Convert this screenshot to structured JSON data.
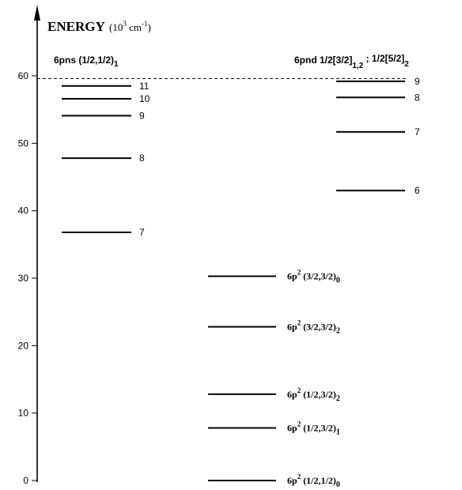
{
  "title": {
    "main": "ENERGY",
    "unit_base": "(10",
    "unit_exp": "3",
    "unit_mid": " cm",
    "unit_exp2": "-1",
    "unit_close": ")"
  },
  "axis": {
    "min": 0,
    "max": 60,
    "ticks": [
      {
        "value": 0,
        "label": "0"
      },
      {
        "value": 10,
        "label": "10"
      },
      {
        "value": 20,
        "label": "20"
      },
      {
        "value": 30,
        "label": "30"
      },
      {
        "value": 40,
        "label": "40"
      },
      {
        "value": 50,
        "label": "50"
      },
      {
        "value": 60,
        "label": "60"
      }
    ]
  },
  "series_6pns": {
    "header_main": "6pns (1/2,1/2)",
    "header_sub": "1",
    "levels": [
      {
        "n": "7",
        "energy": 36.8
      },
      {
        "n": "8",
        "energy": 47.8
      },
      {
        "n": "9",
        "energy": 54.1
      },
      {
        "n": "10",
        "energy": 56.6
      },
      {
        "n": "11",
        "energy": 58.5
      }
    ]
  },
  "series_6pnd": {
    "header_main1": "6pnd 1/2[3/2]",
    "header_sub1": "1,2",
    "header_sep": " ; 1/2[5/2]",
    "header_sub2": "2",
    "levels": [
      {
        "n": "6",
        "energy": 43.0
      },
      {
        "n": "7",
        "energy": 51.7
      },
      {
        "n": "8",
        "energy": 56.8
      },
      {
        "n": "9",
        "energy": 59.2
      }
    ]
  },
  "ground_config": {
    "levels": [
      {
        "base": "6p",
        "sup": "2",
        "coupling": " (1/2,1/2)",
        "sub": "0",
        "energy": 0.0
      },
      {
        "base": "6p",
        "sup": "2",
        "coupling": " (1/2,3/2)",
        "sub": "1",
        "energy": 7.8
      },
      {
        "base": "6p",
        "sup": "2",
        "coupling": " (1/2,3/2)",
        "sub": "2",
        "energy": 12.8
      },
      {
        "base": "6p",
        "sup": "2",
        "coupling": " (3/2,3/2)",
        "sub": "2",
        "energy": 22.8
      },
      {
        "base": "6p",
        "sup": "2",
        "coupling": " (3/2,3/2)",
        "sub": "0",
        "energy": 30.3
      }
    ]
  },
  "ionization_limit": {
    "energy": 59.6
  }
}
